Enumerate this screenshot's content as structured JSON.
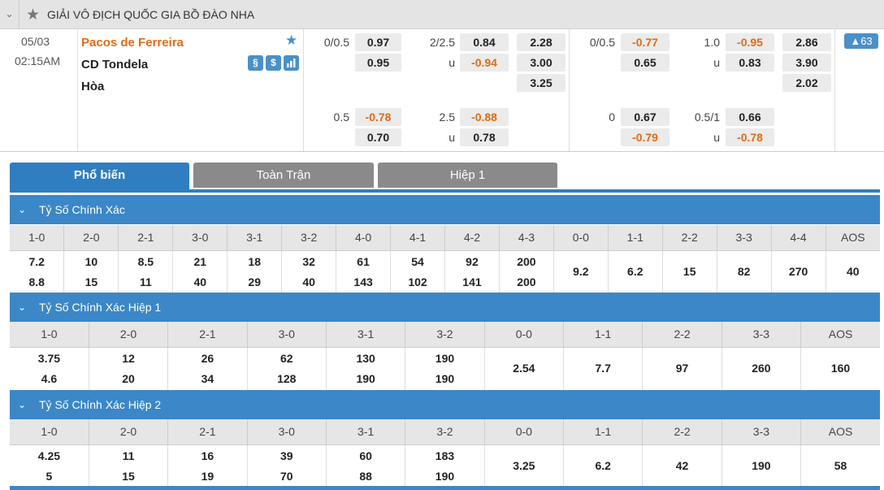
{
  "league": {
    "title": "GIẢI VÔ ĐỊCH QUỐC GIA BỒ ĐÀO NHA"
  },
  "match": {
    "date": "05/03",
    "time": "02:15AM",
    "home": "Pacos de Ferreira",
    "away": "CD Tondela",
    "draw": "Hòa",
    "count": "63",
    "ft_main": {
      "hdp_line": "0/0.5",
      "hdp_home": "0.97",
      "hdp_away": "0.95",
      "ou_line": "2/2.5",
      "ou_over": "0.84",
      "ou_u": "u",
      "ou_under": "-0.94",
      "x12_home": "2.28",
      "x12_away": "3.00",
      "x12_draw": "3.25"
    },
    "ft_alt": {
      "hdp_line": "0.5",
      "hdp_home": "-0.78",
      "hdp_away": "0.70",
      "ou_line": "2.5",
      "ou_over": "-0.88",
      "ou_u": "u",
      "ou_under": "0.78"
    },
    "h1_main": {
      "hdp_line": "0/0.5",
      "hdp_home": "-0.77",
      "hdp_away": "0.65",
      "ou_line": "1.0",
      "ou_over": "-0.95",
      "ou_u": "u",
      "ou_under": "0.83",
      "x12_home": "2.86",
      "x12_away": "3.90",
      "x12_draw": "2.02"
    },
    "h1_alt": {
      "hdp_line": "0",
      "hdp_home": "0.67",
      "hdp_away": "-0.79",
      "ou_line": "0.5/1",
      "ou_over": "0.66",
      "ou_u": "u",
      "ou_under": "-0.78"
    }
  },
  "tabs": [
    "Phổ biến",
    "Toàn Trận",
    "Hiệp 1"
  ],
  "sections": [
    {
      "title": "Tỷ Số Chính Xác",
      "headers": [
        "1-0",
        "2-0",
        "2-1",
        "3-0",
        "3-1",
        "3-2",
        "4-0",
        "4-1",
        "4-2",
        "4-3",
        "0-0",
        "1-1",
        "2-2",
        "3-3",
        "4-4",
        "AOS"
      ],
      "row1": [
        "7.2",
        "10",
        "8.5",
        "21",
        "18",
        "32",
        "61",
        "54",
        "92",
        "200",
        "9.2",
        "6.2",
        "15",
        "82",
        "270",
        "40"
      ],
      "row2": [
        "8.8",
        "15",
        "11",
        "40",
        "29",
        "40",
        "143",
        "102",
        "141",
        "200",
        "",
        "",
        "",
        "",
        "",
        ""
      ]
    },
    {
      "title": "Tỷ Số Chính Xác Hiệp 1",
      "headers": [
        "1-0",
        "2-0",
        "2-1",
        "3-0",
        "3-1",
        "3-2",
        "0-0",
        "1-1",
        "2-2",
        "3-3",
        "AOS"
      ],
      "row1": [
        "3.75",
        "12",
        "26",
        "62",
        "130",
        "190",
        "2.54",
        "7.7",
        "97",
        "260",
        "160"
      ],
      "row2": [
        "4.6",
        "20",
        "34",
        "128",
        "190",
        "190",
        "",
        "",
        "",
        "",
        ""
      ]
    },
    {
      "title": "Tỷ Số Chính Xác Hiệp 2",
      "headers": [
        "1-0",
        "2-0",
        "2-1",
        "3-0",
        "3-1",
        "3-2",
        "0-0",
        "1-1",
        "2-2",
        "3-3",
        "AOS"
      ],
      "row1": [
        "4.25",
        "11",
        "16",
        "39",
        "60",
        "183",
        "3.25",
        "6.2",
        "42",
        "190",
        "58"
      ],
      "row2": [
        "5",
        "15",
        "19",
        "70",
        "88",
        "190",
        "",
        "",
        "",
        "",
        ""
      ]
    }
  ]
}
